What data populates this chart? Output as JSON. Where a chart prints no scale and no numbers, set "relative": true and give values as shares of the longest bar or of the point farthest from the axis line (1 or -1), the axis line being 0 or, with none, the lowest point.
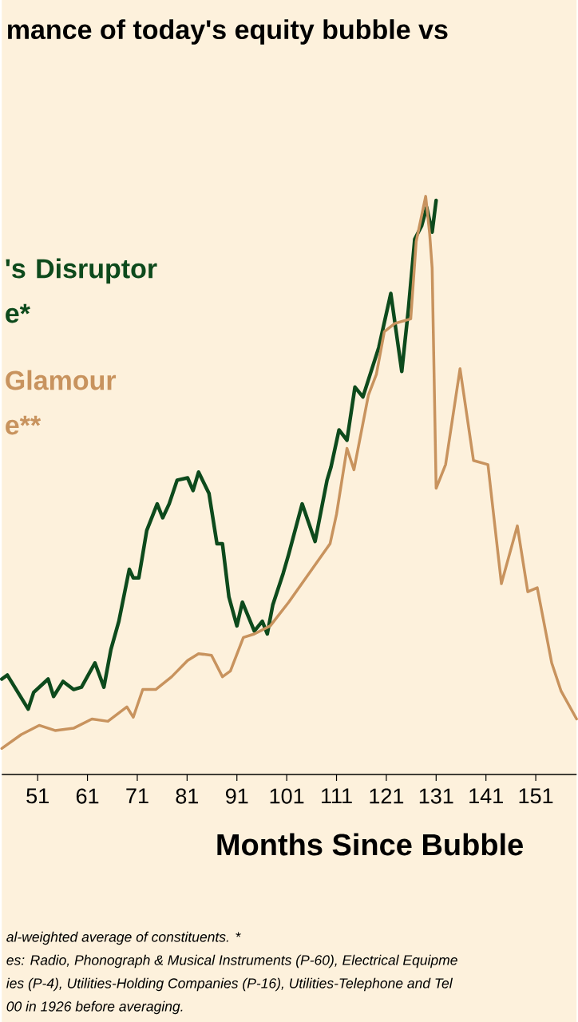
{
  "chart_data": {
    "type": "line",
    "relative": true,
    "title": "mance of today's equity bubble vs",
    "xlabel": "Months Since Bubble",
    "xlim": [
      43.8,
      159.2
    ],
    "xticks": [
      51,
      61,
      71,
      81,
      91,
      101,
      111,
      121,
      131,
      141,
      151
    ],
    "series": [
      {
        "name": "'s Disruptor e*",
        "color": "#0d4a1c",
        "x": [
          43.8,
          44.9,
          49.1,
          50.2,
          53.1,
          54.2,
          56.1,
          58.2,
          59.8,
          62.5,
          64.3,
          65.7,
          67.3,
          69.4,
          70.2,
          71.3,
          72.9,
          75,
          76.1,
          77.4,
          79,
          81.1,
          82.2,
          83.3,
          85.4,
          87,
          88.1,
          89.4,
          91,
          92.1,
          94.5,
          96.1,
          97.1,
          98.2,
          100.3,
          101.4,
          104.1,
          106.7,
          109.1,
          109.9,
          111.5,
          113.1,
          114.7,
          116.3,
          119.5,
          121.9,
          124.1,
          125.4,
          126.7,
          128.1,
          129.1,
          130.2,
          131
        ],
        "values": [
          0.165,
          0.172,
          0.113,
          0.142,
          0.165,
          0.135,
          0.161,
          0.147,
          0.151,
          0.193,
          0.151,
          0.216,
          0.265,
          0.355,
          0.34,
          0.34,
          0.422,
          0.468,
          0.444,
          0.468,
          0.509,
          0.513,
          0.491,
          0.523,
          0.486,
          0.399,
          0.399,
          0.307,
          0.257,
          0.298,
          0.248,
          0.265,
          0.243,
          0.293,
          0.348,
          0.381,
          0.468,
          0.403,
          0.509,
          0.532,
          0.596,
          0.578,
          0.67,
          0.653,
          0.739,
          0.832,
          0.697,
          0.802,
          0.926,
          0.949,
          0.981,
          0.938,
          0.993
        ]
      },
      {
        "name": "Glamour e**",
        "color": "#c8935e",
        "x": [
          43.8,
          47.7,
          51.3,
          54.5,
          58.2,
          61.9,
          65.1,
          68.9,
          70.2,
          72.1,
          74.7,
          77.9,
          81.1,
          83.3,
          85.9,
          88.1,
          89.7,
          92.3,
          94.5,
          97.7,
          101.4,
          109.7,
          111,
          113.1,
          114.5,
          117.4,
          119,
          120.6,
          122.7,
          125.9,
          127,
          128.9,
          129.7,
          130.2,
          131,
          132.9,
          135.8,
          138.5,
          141.4,
          144.1,
          147.3,
          149.4,
          151.3,
          154.2,
          156.1,
          159.2
        ],
        "values": [
          0.045,
          0.069,
          0.085,
          0.076,
          0.08,
          0.096,
          0.092,
          0.117,
          0.099,
          0.147,
          0.147,
          0.169,
          0.197,
          0.209,
          0.206,
          0.169,
          0.179,
          0.237,
          0.243,
          0.257,
          0.298,
          0.399,
          0.45,
          0.564,
          0.527,
          0.656,
          0.692,
          0.766,
          0.78,
          0.788,
          0.922,
          1.0,
          0.935,
          0.876,
          0.495,
          0.536,
          0.702,
          0.543,
          0.536,
          0.33,
          0.43,
          0.316,
          0.323,
          0.193,
          0.144,
          0.096
        ]
      }
    ],
    "annotations": [
      "al-weighted average of constituents. *",
      "es: Radio, Phonograph & Musical Instruments (P-60), Electrical Equipme",
      "ies (P-4), Utilities-Holding Companies (P-16), Utilities-Telephone and Tel",
      "00 in 1926 before averaging."
    ]
  }
}
